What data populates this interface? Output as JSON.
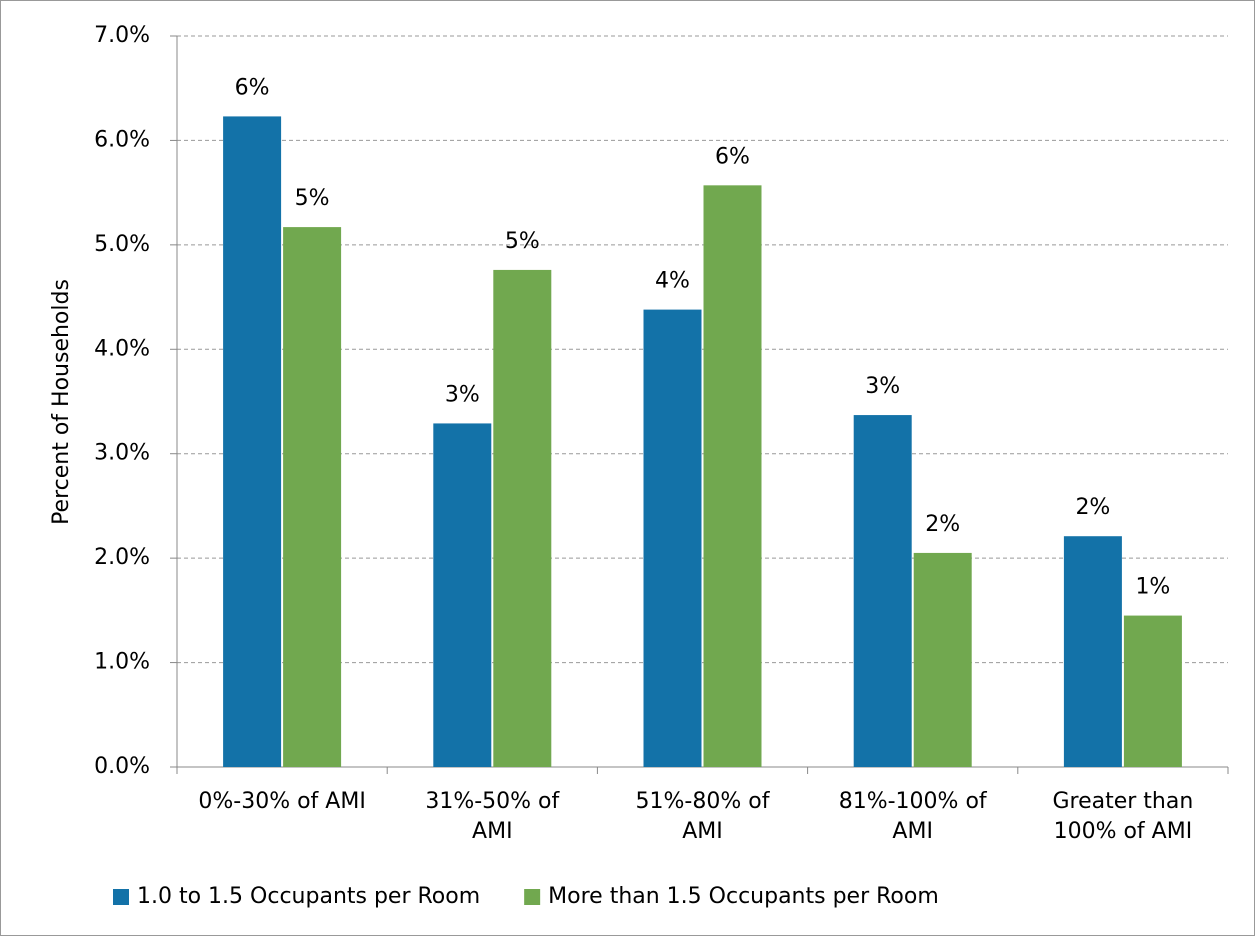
{
  "chart_data": {
    "type": "bar",
    "y_axis_label": "Percent of Households",
    "categories": [
      "0%-30% of AMI",
      "31%-50% of AMI",
      "51%-80% of AMI",
      "81%-100% of AMI",
      "Greater than 100% of AMI"
    ],
    "series": [
      {
        "name": "1.0 to 1.5 Occupants per Room",
        "color": "#1372a8",
        "values": [
          6.23,
          3.29,
          4.38,
          3.37,
          2.21
        ],
        "value_labels": [
          "6%",
          "3%",
          "4%",
          "3%",
          "2%"
        ]
      },
      {
        "name": "More than 1.5 Occupants per Room",
        "color": "#71a84f",
        "values": [
          5.17,
          4.76,
          5.57,
          2.05,
          1.45
        ],
        "value_labels": [
          "5%",
          "5%",
          "6%",
          "2%",
          "1%"
        ]
      }
    ],
    "ylim": [
      0,
      7
    ],
    "yticks": [
      {
        "value": 0,
        "label": "0.0%"
      },
      {
        "value": 1,
        "label": "1.0%"
      },
      {
        "value": 2,
        "label": "2.0%"
      },
      {
        "value": 3,
        "label": "3.0%"
      },
      {
        "value": 4,
        "label": "4.0%"
      },
      {
        "value": 5,
        "label": "5.0%"
      },
      {
        "value": 6,
        "label": "6.0%"
      },
      {
        "value": 7,
        "label": "7.0%"
      }
    ],
    "grid": true,
    "legend": "bottom"
  }
}
